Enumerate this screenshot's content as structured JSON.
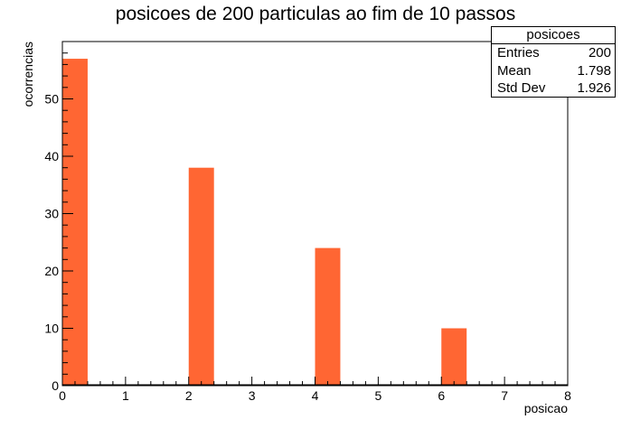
{
  "title": "posicoes de 200 particulas ao fim de 10 passos",
  "stats_box": {
    "name": "posicoes",
    "rows": [
      {
        "label": "Entries",
        "value": "200"
      },
      {
        "label": "Mean",
        "value": "1.798"
      },
      {
        "label": "Std Dev",
        "value": "1.926"
      }
    ]
  },
  "colors": {
    "bar_fill": "#ff6633",
    "axis": "#000000"
  },
  "chart_data": {
    "type": "bar",
    "title": "posicoes de 200 particulas ao fim de 10 passos",
    "xlabel": "posicao",
    "ylabel": "ocorrencias",
    "xlim": [
      0,
      8
    ],
    "ylim": [
      0,
      60
    ],
    "bin_width": 0.4,
    "bins": [
      {
        "x_low": 0.0,
        "x_high": 0.4,
        "count": 57
      },
      {
        "x_low": 2.0,
        "x_high": 2.4,
        "count": 38
      },
      {
        "x_low": 4.0,
        "x_high": 4.4,
        "count": 24
      },
      {
        "x_low": 6.0,
        "x_high": 6.4,
        "count": 10
      }
    ],
    "x_ticks": [
      "0",
      "1",
      "2",
      "3",
      "4",
      "5",
      "6",
      "7",
      "8"
    ],
    "y_ticks": [
      "0",
      "10",
      "20",
      "30",
      "40",
      "50"
    ],
    "grid": false,
    "legend": "top-right"
  }
}
